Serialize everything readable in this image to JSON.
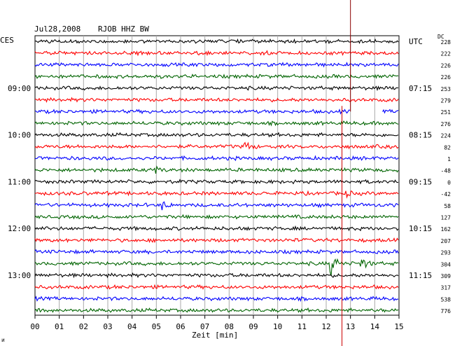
{
  "header": {
    "date": "Jul28,2008",
    "station": "RJOB HHZ BW"
  },
  "left_zone": "CES",
  "right_zone": "UTC",
  "dc_label": "DC",
  "xlabel": "Zeit [min]",
  "corner_mark": "ᴎ",
  "chart_data": {
    "type": "line",
    "title": "Jul28,2008  RJOB HHZ BW",
    "xlabel": "Zeit [min]",
    "xlim": [
      0,
      15
    ],
    "x_ticks": [
      "00",
      "01",
      "02",
      "03",
      "04",
      "05",
      "06",
      "07",
      "08",
      "09",
      "10",
      "11",
      "12",
      "13",
      "14",
      "15"
    ],
    "series_colors": [
      "#000000",
      "#ff0000",
      "#0000ff",
      "#006400"
    ],
    "left_time_labels": [
      {
        "row": 4,
        "text": "09:00"
      },
      {
        "row": 8,
        "text": "10:00"
      },
      {
        "row": 12,
        "text": "11:00"
      },
      {
        "row": 16,
        "text": "12:00"
      },
      {
        "row": 20,
        "text": "13:00"
      }
    ],
    "right_time_labels": [
      {
        "row": 0,
        "text": "UTC"
      },
      {
        "row": 4,
        "text": "07:15"
      },
      {
        "row": 8,
        "text": "08:15"
      },
      {
        "row": 12,
        "text": "09:15"
      },
      {
        "row": 16,
        "text": "10:15"
      },
      {
        "row": 20,
        "text": "11:15"
      }
    ],
    "dc_values": [
      228,
      222,
      226,
      226,
      253,
      279,
      251,
      276,
      224,
      82,
      1,
      -48,
      0,
      -42,
      58,
      127,
      162,
      207,
      293,
      304,
      309,
      317,
      538,
      776
    ],
    "events": [
      {
        "row": 19,
        "minute": 12.15,
        "amplitude": 2.5
      },
      {
        "row": 19,
        "minute": 13.4,
        "amplitude": 1.4
      },
      {
        "row": 9,
        "minute": 8.6,
        "amplitude": 1.1
      },
      {
        "row": 11,
        "minute": 4.9,
        "amplitude": 0.7
      },
      {
        "row": 14,
        "minute": 5.2,
        "amplitude": 0.8
      },
      {
        "row": 13,
        "minute": 12.8,
        "amplitude": 0.5
      }
    ],
    "gap": {
      "row": 6,
      "from_minute": 13.0,
      "to_minute": 14.3
    },
    "vertical_markers": [
      {
        "minute": 13.0,
        "color": "#8b0000"
      },
      {
        "minute": 12.65,
        "color": "#cc0000"
      }
    ],
    "grid": true
  }
}
